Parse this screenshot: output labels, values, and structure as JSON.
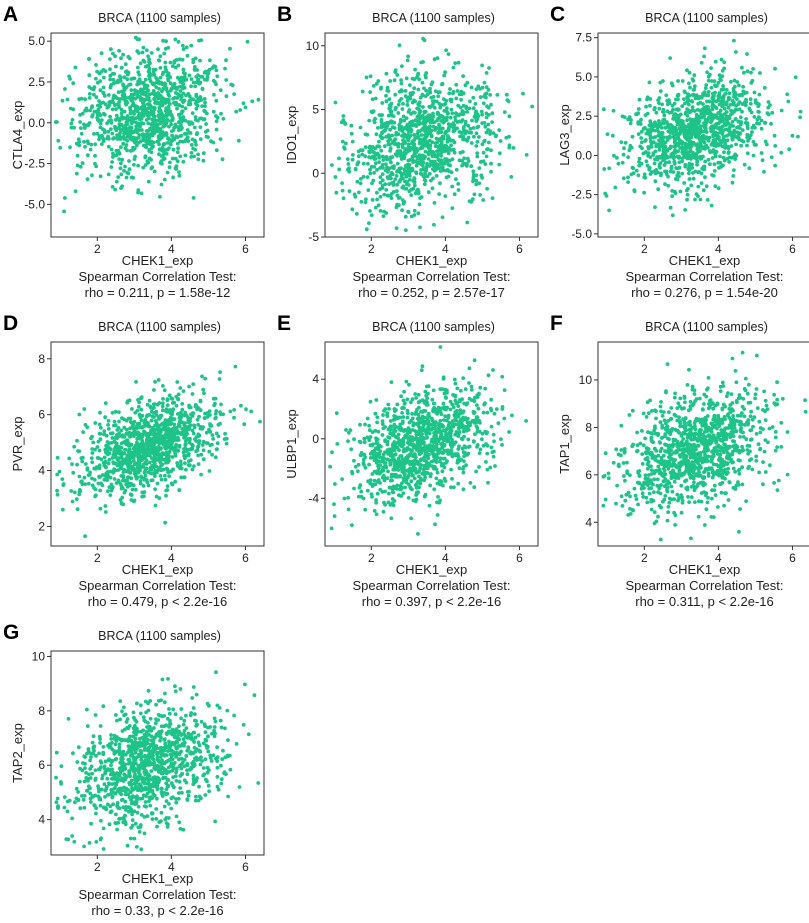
{
  "figure": {
    "point_color": "#1fc389",
    "background": "#ffffff"
  },
  "chart_data": [
    {
      "panel_label": "A",
      "type": "scatter",
      "title": "BRCA (1100 samples)",
      "xlabel": "CHEK1_exp",
      "ylabel": "CTLA4_exp",
      "xlim": [
        0.75,
        6.5
      ],
      "ylim": [
        -7.0,
        5.5
      ],
      "xticks": [
        2,
        4,
        6
      ],
      "xtick_labels": [
        "2",
        "4",
        "6"
      ],
      "yticks": [
        5.0,
        2.5,
        0.0,
        -2.5,
        -5.0
      ],
      "ytick_labels": [
        "5.0",
        "2.5",
        "0.0",
        "-2.5",
        "-5.0"
      ],
      "n_samples": 1100,
      "cloud_center": [
        3.4,
        0.6
      ],
      "cloud_spread": [
        0.95,
        1.9
      ],
      "stat_test": "Spearman Correlation Test:",
      "stat_result": "rho = 0.211, p = 1.58e-12",
      "rho": 0.211
    },
    {
      "panel_label": "B",
      "type": "scatter",
      "title": "BRCA (1100 samples)",
      "xlabel": "CHEK1_exp",
      "ylabel": "IDO1_exp",
      "xlim": [
        0.75,
        6.5
      ],
      "ylim": [
        -5.0,
        11.0
      ],
      "xticks": [
        2,
        4,
        6
      ],
      "xtick_labels": [
        "2",
        "4",
        "6"
      ],
      "yticks": [
        10,
        5,
        0,
        -5
      ],
      "ytick_labels": [
        "10",
        "5",
        "0",
        "-5"
      ],
      "n_samples": 1100,
      "cloud_center": [
        3.4,
        2.5
      ],
      "cloud_spread": [
        0.95,
        2.6
      ],
      "stat_test": "Spearman Correlation Test:",
      "stat_result": "rho = 0.252, p = 2.57e-17",
      "rho": 0.252
    },
    {
      "panel_label": "C",
      "type": "scatter",
      "title": "BRCA (1100 samples)",
      "xlabel": "CHEK1_exp",
      "ylabel": "LAG3_exp",
      "xlim": [
        0.75,
        6.5
      ],
      "ylim": [
        -5.2,
        7.8
      ],
      "xticks": [
        2,
        4,
        6
      ],
      "xtick_labels": [
        "2",
        "4",
        "6"
      ],
      "yticks": [
        7.5,
        5.0,
        2.5,
        0.0,
        -2.5,
        -5.0
      ],
      "ytick_labels": [
        "7.5",
        "5.0",
        "2.5",
        "0.0",
        "-2.5",
        "-5.0"
      ],
      "n_samples": 1100,
      "cloud_center": [
        3.4,
        1.5
      ],
      "cloud_spread": [
        0.95,
        1.8
      ],
      "stat_test": "Spearman Correlation Test:",
      "stat_result": "rho = 0.276, p = 1.54e-20",
      "rho": 0.276
    },
    {
      "panel_label": "D",
      "type": "scatter",
      "title": "BRCA (1100 samples)",
      "xlabel": "CHEK1_exp",
      "ylabel": "PVR_exp",
      "xlim": [
        0.75,
        6.5
      ],
      "ylim": [
        1.3,
        8.6
      ],
      "xticks": [
        2,
        4,
        6
      ],
      "xtick_labels": [
        "2",
        "4",
        "6"
      ],
      "yticks": [
        8,
        6,
        4,
        2
      ],
      "ytick_labels": [
        "8",
        "6",
        "4",
        "2"
      ],
      "n_samples": 1100,
      "cloud_center": [
        3.4,
        4.9
      ],
      "cloud_spread": [
        0.95,
        0.9
      ],
      "stat_test": "Spearman Correlation Test:",
      "stat_result": "rho = 0.479, p < 2.2e-16",
      "rho": 0.479
    },
    {
      "panel_label": "E",
      "type": "scatter",
      "title": "BRCA (1100 samples)",
      "xlabel": "CHEK1_exp",
      "ylabel": "ULBP1_exp",
      "xlim": [
        0.75,
        6.5
      ],
      "ylim": [
        -7.2,
        6.5
      ],
      "xticks": [
        2,
        4,
        6
      ],
      "xtick_labels": [
        "2",
        "4",
        "6"
      ],
      "yticks": [
        4,
        0,
        -4
      ],
      "ytick_labels": [
        "4",
        "0",
        "-4"
      ],
      "n_samples": 1100,
      "cloud_center": [
        3.4,
        -0.3
      ],
      "cloud_spread": [
        0.95,
        2.0
      ],
      "stat_test": "Spearman Correlation Test:",
      "stat_result": "rho = 0.397, p < 2.2e-16",
      "rho": 0.397
    },
    {
      "panel_label": "F",
      "type": "scatter",
      "title": "BRCA (1100 samples)",
      "xlabel": "CHEK1_exp",
      "ylabel": "TAP1_exp",
      "xlim": [
        0.75,
        6.5
      ],
      "ylim": [
        3.0,
        11.6
      ],
      "xticks": [
        2,
        4,
        6
      ],
      "xtick_labels": [
        "2",
        "4",
        "6"
      ],
      "yticks": [
        10,
        8,
        6,
        4
      ],
      "ytick_labels": [
        "10",
        "8",
        "6",
        "4"
      ],
      "n_samples": 1100,
      "cloud_center": [
        3.4,
        7.0
      ],
      "cloud_spread": [
        0.95,
        1.25
      ],
      "stat_test": "Spearman Correlation Test:",
      "stat_result": "rho = 0.311, p < 2.2e-16",
      "rho": 0.311
    },
    {
      "panel_label": "G",
      "type": "scatter",
      "title": "BRCA (1100 samples)",
      "xlabel": "CHEK1_exp",
      "ylabel": "TAP2_exp",
      "xlim": [
        0.75,
        6.5
      ],
      "ylim": [
        2.7,
        10.2
      ],
      "xticks": [
        2,
        4,
        6
      ],
      "xtick_labels": [
        "2",
        "4",
        "6"
      ],
      "yticks": [
        10,
        8,
        6,
        4
      ],
      "ytick_labels": [
        "10",
        "8",
        "6",
        "4"
      ],
      "n_samples": 1100,
      "cloud_center": [
        3.4,
        6.0
      ],
      "cloud_spread": [
        0.95,
        1.1
      ],
      "stat_test": "Spearman Correlation Test:",
      "stat_result": "rho = 0.33, p < 2.2e-16",
      "rho": 0.33
    }
  ]
}
